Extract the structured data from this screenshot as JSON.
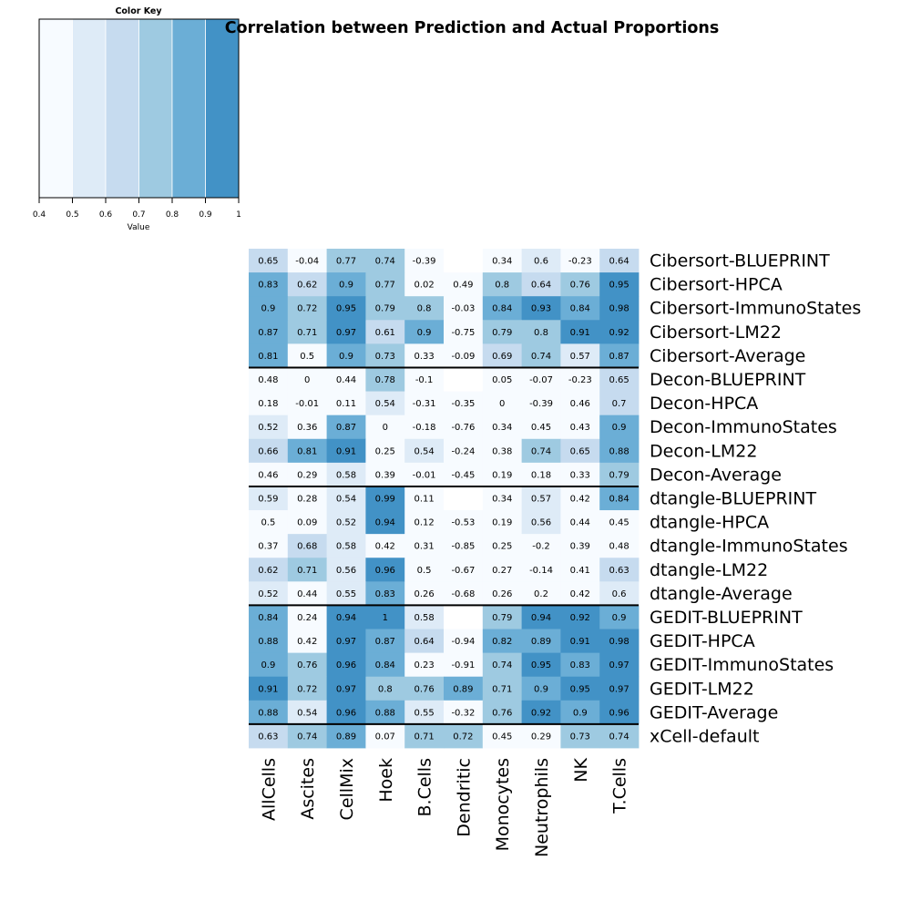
{
  "chart_data": {
    "type": "heatmap",
    "title": "Correlation between Prediction and Actual Proportions",
    "color_key": {
      "title": "Color Key",
      "xlabel": "Value",
      "ticks": [
        "0.4",
        "0.5",
        "0.6",
        "0.7",
        "0.8",
        "0.9",
        "1"
      ],
      "breaks": [
        0.4,
        0.5,
        0.6,
        0.7,
        0.8,
        0.9,
        1.0
      ],
      "colors": [
        "#f7fbff",
        "#deebf7",
        "#c6dbef",
        "#9ecae1",
        "#6baed6",
        "#4292c6"
      ]
    },
    "columns": [
      "AllCells",
      "Ascites",
      "CellMix",
      "Hoek",
      "B.Cells",
      "Dendritic",
      "Monocytes",
      "Neutrophils",
      "NK",
      "T.Cells"
    ],
    "rows": [
      "Cibersort-BLUEPRINT",
      "Cibersort-HPCA",
      "Cibersort-ImmunoStates",
      "Cibersort-LM22",
      "Cibersort-Average",
      "Decon-BLUEPRINT",
      "Decon-HPCA",
      "Decon-ImmunoStates",
      "Decon-LM22",
      "Decon-Average",
      "dtangle-BLUEPRINT",
      "dtangle-HPCA",
      "dtangle-ImmunoStates",
      "dtangle-LM22",
      "dtangle-Average",
      "GEDIT-BLUEPRINT",
      "GEDIT-HPCA",
      "GEDIT-ImmunoStates",
      "GEDIT-LM22",
      "GEDIT-Average",
      "xCell-default"
    ],
    "values": [
      [
        0.65,
        -0.04,
        0.77,
        0.74,
        -0.39,
        null,
        0.34,
        0.6,
        -0.23,
        0.64
      ],
      [
        0.83,
        0.62,
        0.9,
        0.77,
        0.02,
        0.49,
        0.8,
        0.64,
        0.76,
        0.95
      ],
      [
        0.9,
        0.72,
        0.95,
        0.79,
        0.8,
        -0.03,
        0.84,
        0.93,
        0.84,
        0.98
      ],
      [
        0.87,
        0.71,
        0.97,
        0.61,
        0.9,
        -0.75,
        0.79,
        0.8,
        0.91,
        0.92
      ],
      [
        0.81,
        0.5,
        0.9,
        0.73,
        0.33,
        -0.09,
        0.69,
        0.74,
        0.57,
        0.87
      ],
      [
        0.48,
        0,
        0.44,
        0.78,
        -0.1,
        null,
        0.05,
        -0.07,
        -0.23,
        0.65
      ],
      [
        0.18,
        -0.01,
        0.11,
        0.54,
        -0.31,
        -0.35,
        0,
        -0.39,
        0.46,
        0.7
      ],
      [
        0.52,
        0.36,
        0.87,
        0,
        -0.18,
        -0.76,
        0.34,
        0.45,
        0.43,
        0.9
      ],
      [
        0.66,
        0.81,
        0.91,
        0.25,
        0.54,
        -0.24,
        0.38,
        0.74,
        0.65,
        0.88
      ],
      [
        0.46,
        0.29,
        0.58,
        0.39,
        -0.01,
        -0.45,
        0.19,
        0.18,
        0.33,
        0.79
      ],
      [
        0.59,
        0.28,
        0.54,
        0.99,
        0.11,
        null,
        0.34,
        0.57,
        0.42,
        0.84
      ],
      [
        0.5,
        0.09,
        0.52,
        0.94,
        0.12,
        -0.53,
        0.19,
        0.56,
        0.44,
        0.45
      ],
      [
        0.37,
        0.68,
        0.58,
        0.42,
        0.31,
        -0.85,
        0.25,
        -0.2,
        0.39,
        0.48
      ],
      [
        0.62,
        0.71,
        0.56,
        0.96,
        0.5,
        -0.67,
        0.27,
        -0.14,
        0.41,
        0.63
      ],
      [
        0.52,
        0.44,
        0.55,
        0.83,
        0.26,
        -0.68,
        0.26,
        0.2,
        0.42,
        0.6
      ],
      [
        0.84,
        0.24,
        0.94,
        1,
        0.58,
        null,
        0.79,
        0.94,
        0.92,
        0.9
      ],
      [
        0.88,
        0.42,
        0.97,
        0.87,
        0.64,
        -0.94,
        0.82,
        0.89,
        0.91,
        0.98
      ],
      [
        0.9,
        0.76,
        0.96,
        0.84,
        0.23,
        -0.91,
        0.74,
        0.95,
        0.83,
        0.97
      ],
      [
        0.91,
        0.72,
        0.97,
        0.8,
        0.76,
        0.89,
        0.71,
        0.9,
        0.95,
        0.97
      ],
      [
        0.88,
        0.54,
        0.96,
        0.88,
        0.55,
        -0.32,
        0.76,
        0.92,
        0.9,
        0.96
      ],
      [
        0.63,
        0.74,
        0.89,
        0.07,
        0.71,
        0.72,
        0.45,
        0.29,
        0.73,
        0.74
      ]
    ],
    "group_separators_after_rows": [
      4,
      9,
      14,
      19
    ],
    "missing_color": "#ffffff",
    "cell_text_color": "#000000"
  }
}
